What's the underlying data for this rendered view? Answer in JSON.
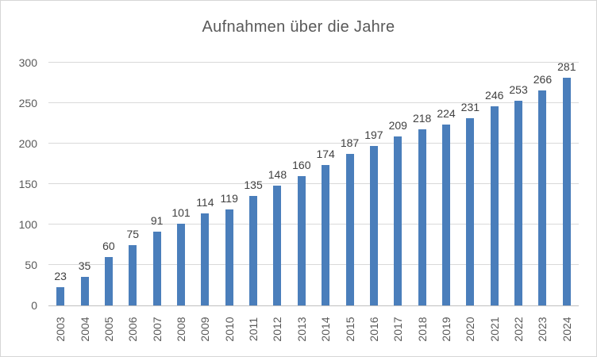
{
  "chart_data": {
    "type": "bar",
    "title": "Aufnahmen über die Jahre",
    "categories": [
      "2003",
      "2004",
      "2005",
      "2006",
      "2007",
      "2008",
      "2009",
      "2010",
      "2011",
      "2012",
      "2013",
      "2014",
      "2015",
      "2016",
      "2017",
      "2018",
      "2019",
      "2020",
      "2021",
      "2022",
      "2023",
      "2024"
    ],
    "values": [
      23,
      35,
      60,
      75,
      91,
      101,
      114,
      119,
      135,
      148,
      160,
      174,
      187,
      197,
      209,
      218,
      224,
      231,
      246,
      253,
      266,
      281
    ],
    "xlabel": "",
    "ylabel": "",
    "ylim": [
      0,
      300
    ],
    "yticks": [
      0,
      50,
      100,
      150,
      200,
      250,
      300
    ],
    "grid": true,
    "legend": false,
    "data_labels": true,
    "colors": {
      "bar": "#4a7ebb",
      "gridline": "#d9d9d9",
      "axis_line": "#bfbfbf",
      "tick_label": "#595959",
      "data_label": "#404040",
      "title": "#595959",
      "background": "#ffffff",
      "border": "#d6d6d6"
    }
  }
}
